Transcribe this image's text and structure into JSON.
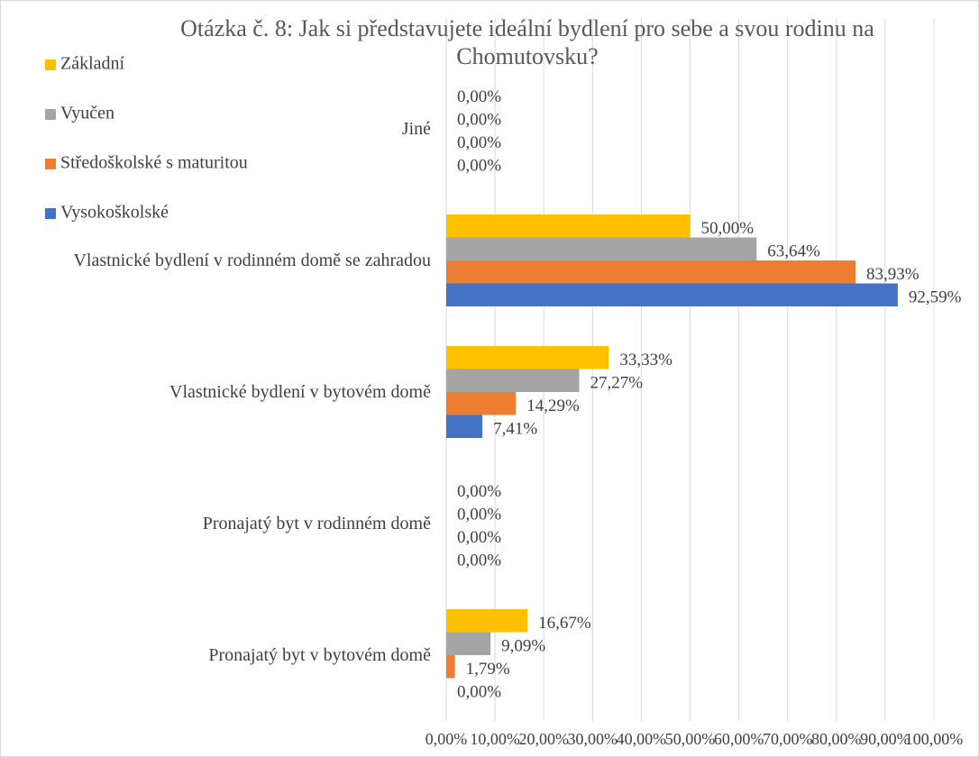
{
  "chart_data": {
    "type": "bar",
    "orientation": "horizontal",
    "title": "Otázka č. 8: Jak si představujete ideální bydlení pro sebe a svou rodinu na Chomutovsku?",
    "categories": [
      "Jiné",
      "Vlastnické bydlení v rodinném domě se zahradou",
      "Vlastnické bydlení v bytovém domě",
      "Pronajatý byt v rodinném domě",
      "Pronajatý byt v bytovém domě"
    ],
    "series": [
      {
        "name": "Základní",
        "color": "#ffc000",
        "values": [
          0,
          50,
          33.33,
          0,
          16.67
        ],
        "value_labels": [
          "0,00%",
          "50,00%",
          "33,33%",
          "0,00%",
          "16,67%"
        ]
      },
      {
        "name": "Vyučen",
        "color": "#a5a5a5",
        "values": [
          0,
          63.64,
          27.27,
          0,
          9.09
        ],
        "value_labels": [
          "0,00%",
          "63,64%",
          "27,27%",
          "0,00%",
          "9,09%"
        ]
      },
      {
        "name": "Středoškolské s maturitou",
        "color": "#ed7d31",
        "values": [
          0,
          83.93,
          14.29,
          0,
          1.79
        ],
        "value_labels": [
          "0,00%",
          "83,93%",
          "14,29%",
          "0,00%",
          "1,79%"
        ]
      },
      {
        "name": "Vysokoškolské",
        "color": "#4472c4",
        "values": [
          0,
          92.59,
          7.41,
          0,
          0
        ],
        "value_labels": [
          "0,00%",
          "92,59%",
          "7,41%",
          "0,00%",
          "0,00%"
        ]
      }
    ],
    "xlim": [
      0,
      100
    ],
    "xticks": [
      {
        "value": 0,
        "label": "0,00%"
      },
      {
        "value": 10,
        "label": "10,00%"
      },
      {
        "value": 20,
        "label": "20,00%"
      },
      {
        "value": 30,
        "label": "30,00%"
      },
      {
        "value": 40,
        "label": "40,00%"
      },
      {
        "value": 50,
        "label": "50,00%"
      },
      {
        "value": 60,
        "label": "60,00%"
      },
      {
        "value": 70,
        "label": "70,00%"
      },
      {
        "value": 80,
        "label": "80,00%"
      },
      {
        "value": 90,
        "label": "90,00%"
      },
      {
        "value": 100,
        "label": "100,00%"
      }
    ],
    "grid": true,
    "legend": "top-left"
  }
}
